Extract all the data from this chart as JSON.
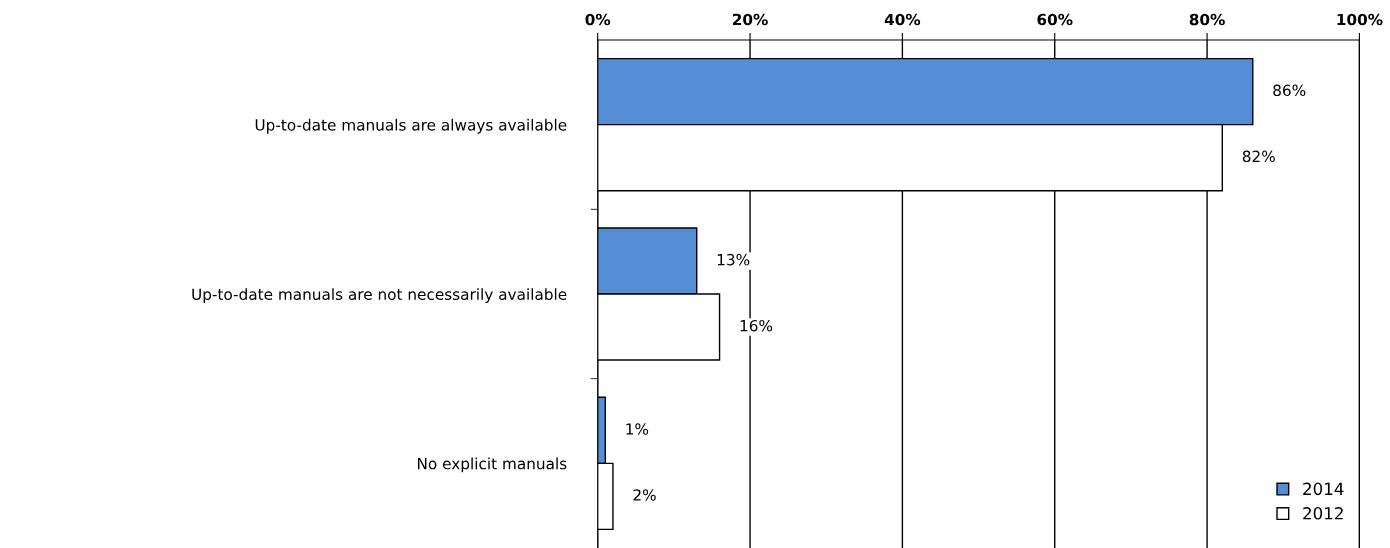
{
  "chart_data": {
    "type": "bar",
    "orientation": "horizontal",
    "categories": [
      "Up-to-date manuals are always available",
      "Up-to-date manuals are not necessarily available",
      "No explicit manuals"
    ],
    "series": [
      {
        "name": "2014",
        "color": "#558ed5",
        "values": [
          86,
          13,
          1
        ],
        "value_labels": [
          "86%",
          "13%",
          "1%"
        ]
      },
      {
        "name": "2012",
        "color": "#ffffff",
        "values": [
          82,
          16,
          2
        ],
        "value_labels": [
          "82%",
          "16%",
          "2%"
        ]
      }
    ],
    "xlim": [
      0,
      100
    ],
    "xticks": [
      {
        "value": 0,
        "label": "0%"
      },
      {
        "value": 20,
        "label": "20%"
      },
      {
        "value": 40,
        "label": "40%"
      },
      {
        "value": 60,
        "label": "60%"
      },
      {
        "value": 80,
        "label": "80%"
      },
      {
        "value": 100,
        "label": "100%"
      }
    ],
    "grid": "x",
    "legend": "bottom right"
  }
}
